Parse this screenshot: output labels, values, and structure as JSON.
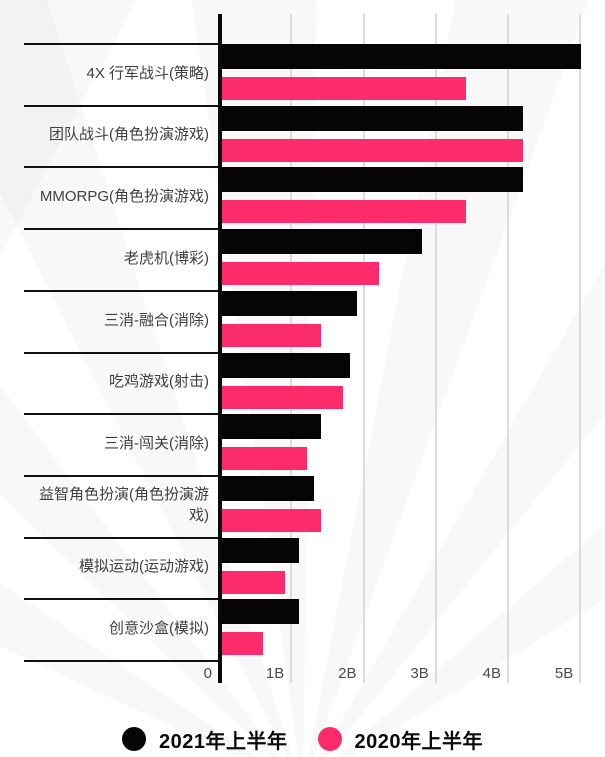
{
  "chart_data": {
    "type": "bar",
    "orientation": "horizontal",
    "title": "",
    "xlabel": "",
    "ylabel": "",
    "unit": "B",
    "xlim": [
      0,
      5.3
    ],
    "x_ticks": [
      "0",
      "1B",
      "2B",
      "3B",
      "4B",
      "5B"
    ],
    "x_tick_values": [
      0,
      1,
      2,
      3,
      4,
      5
    ],
    "grid": true,
    "legend_position": "bottom",
    "categories": [
      "4X 行军战斗(策略)",
      "团队战斗(角色扮演游戏)",
      "MMORPG(角色扮演游戏)",
      "老虎机(博彩)",
      "三消-融合(消除)",
      "吃鸡游戏(射击)",
      "三消-闯关(消除)",
      "益智角色扮演(角色扮演游戏)",
      "模拟运动(运动游戏)",
      "创意沙盒(模拟)"
    ],
    "series": [
      {
        "name": "2021年上半年",
        "color": "#050505",
        "values": [
          5.0,
          4.2,
          4.2,
          2.8,
          1.9,
          1.8,
          1.4,
          1.3,
          1.1,
          1.1
        ]
      },
      {
        "name": "2020年上半年",
        "color": "#FB2B6C",
        "values": [
          3.4,
          4.2,
          3.4,
          2.2,
          1.4,
          1.7,
          1.2,
          1.4,
          0.9,
          0.6
        ]
      }
    ]
  },
  "legend": {
    "items": [
      {
        "label": "2021年上半年",
        "color": "#050505"
      },
      {
        "label": "2020年上半年",
        "color": "#FB2B6C"
      }
    ]
  }
}
